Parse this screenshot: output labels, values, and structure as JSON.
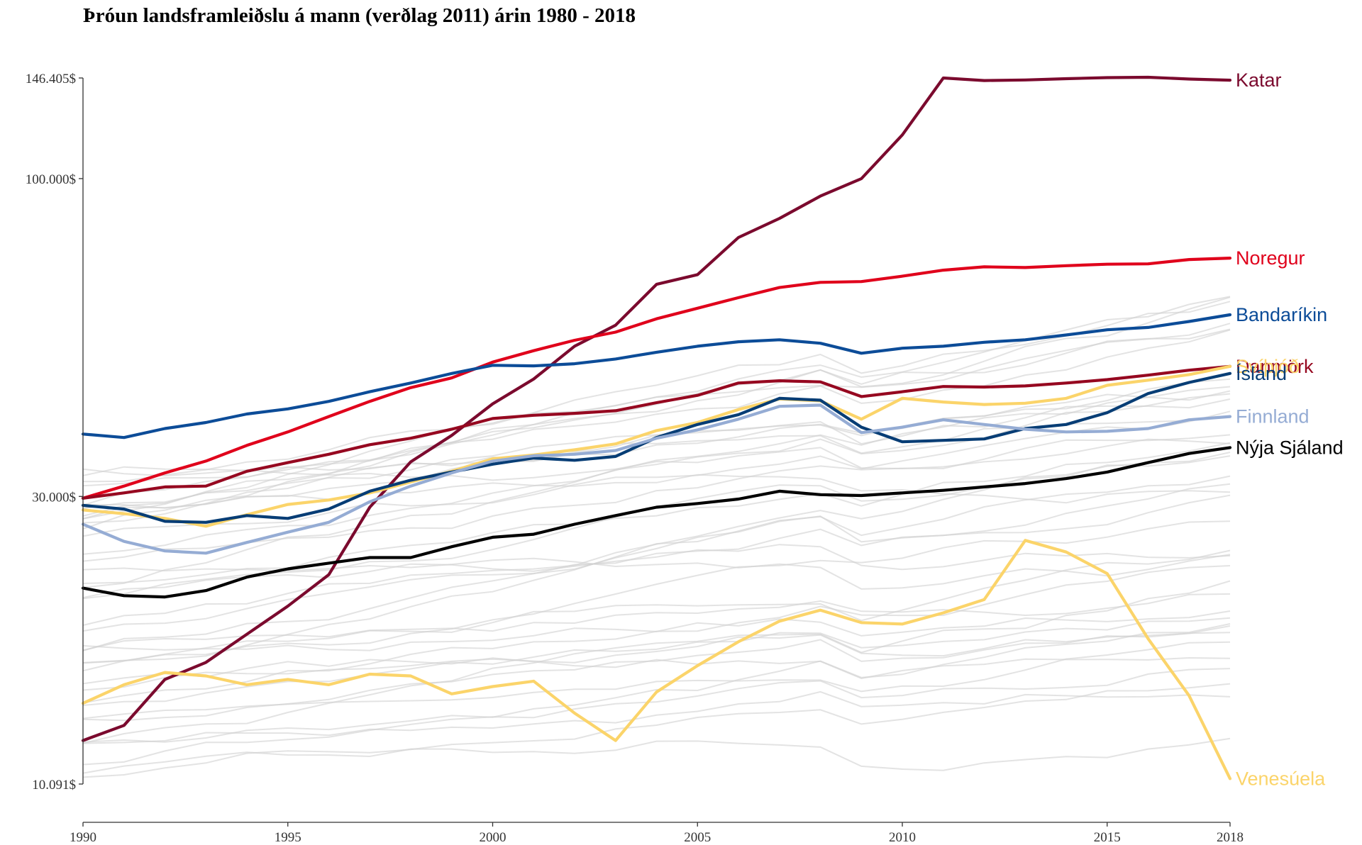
{
  "chart_data": {
    "type": "line",
    "title": "Þróun landsframleiðslu á mann (verðlag 2011) árin 1980 - 2018",
    "xlabel": "",
    "ylabel": "",
    "y_scale": "log",
    "ylim": [
      10091,
      146405
    ],
    "xlim": [
      1990,
      2018
    ],
    "y_ticks": [
      {
        "value": 10091,
        "label": "10.091$"
      },
      {
        "value": 30000,
        "label": "30.000$"
      },
      {
        "value": 100000,
        "label": "100.000$"
      },
      {
        "value": 146405,
        "label": "146.405$"
      }
    ],
    "x_ticks": [
      {
        "value": 1990,
        "label": "1990"
      },
      {
        "value": 1995,
        "label": "1995"
      },
      {
        "value": 2000,
        "label": "2000"
      },
      {
        "value": 2005,
        "label": "2005"
      },
      {
        "value": 2010,
        "label": "2010"
      },
      {
        "value": 2015,
        "label": "2015"
      },
      {
        "value": 2018,
        "label": "2018"
      }
    ],
    "grid": false,
    "legend": "direct labels at right end of lines",
    "x": [
      1990,
      1991,
      1992,
      1993,
      1994,
      1995,
      1996,
      1997,
      1998,
      1999,
      2000,
      2001,
      2002,
      2003,
      2004,
      2005,
      2006,
      2007,
      2008,
      2009,
      2010,
      2011,
      2012,
      2013,
      2014,
      2015,
      2016,
      2017,
      2018
    ],
    "series": [
      {
        "name": "Katar",
        "color": "#7b0a2e",
        "values": [
          11900,
          12600,
          15000,
          16000,
          17800,
          19800,
          22300,
          28800,
          34200,
          37800,
          42600,
          46800,
          53000,
          57400,
          67000,
          69500,
          80000,
          86000,
          93600,
          100000,
          118000,
          146405,
          145000,
          145300,
          146000,
          146600,
          146800,
          145800,
          145200
        ]
      },
      {
        "name": "Noregur",
        "color": "#e0001b",
        "values": [
          29800,
          31200,
          32800,
          34300,
          36400,
          38300,
          40600,
          43000,
          45300,
          47000,
          49900,
          52100,
          54200,
          55900,
          58800,
          61200,
          63700,
          66200,
          67500,
          67700,
          69100,
          70700,
          71600,
          71400,
          71900,
          72300,
          72400,
          73600,
          74000
        ]
      },
      {
        "name": "Bandaríkin",
        "color": "#0c4c98",
        "values": [
          38000,
          37500,
          38800,
          39700,
          41000,
          41800,
          43000,
          44600,
          46100,
          47800,
          49300,
          49200,
          49600,
          50500,
          51800,
          53000,
          53900,
          54300,
          53600,
          51600,
          52600,
          53000,
          53800,
          54300,
          55300,
          56400,
          56900,
          58200,
          59700
        ]
      },
      {
        "name": "Danmörk",
        "color": "#960820",
        "values": [
          29800,
          30400,
          31100,
          31200,
          33000,
          34100,
          35200,
          36500,
          37400,
          38700,
          40300,
          40800,
          41100,
          41500,
          42800,
          44000,
          46100,
          46500,
          46300,
          43800,
          44600,
          45500,
          45400,
          45600,
          46100,
          46700,
          47500,
          48400,
          49100
        ]
      },
      {
        "name": "Svíþjóð",
        "color": "#fbd46a",
        "values": [
          28500,
          28100,
          27600,
          26800,
          28000,
          29100,
          29600,
          30400,
          31700,
          33000,
          34600,
          35100,
          35800,
          36600,
          38500,
          39700,
          41700,
          43400,
          43100,
          40200,
          43500,
          42900,
          42500,
          42700,
          43500,
          45700,
          46600,
          47600,
          49100
        ]
      },
      {
        "name": "Ísland",
        "color": "#073d75",
        "values": [
          29000,
          28600,
          27300,
          27200,
          27900,
          27600,
          28600,
          30600,
          31900,
          32900,
          33900,
          34700,
          34400,
          34900,
          37500,
          39400,
          40900,
          43500,
          43200,
          39000,
          36900,
          37100,
          37300,
          38800,
          39400,
          41200,
          44300,
          46200,
          47800
        ]
      },
      {
        "name": "Finnland",
        "color": "#95acd4",
        "values": [
          27000,
          25300,
          24400,
          24200,
          25200,
          26200,
          27200,
          29400,
          31200,
          32800,
          34300,
          35000,
          35200,
          35700,
          37400,
          38600,
          40200,
          42200,
          42400,
          38200,
          39000,
          40100,
          39400,
          38700,
          38300,
          38400,
          38800,
          40100,
          40600
        ]
      },
      {
        "name": "Nýja Sjáland",
        "color": "#000000",
        "values": [
          21200,
          20600,
          20500,
          21000,
          22100,
          22800,
          23300,
          23800,
          23800,
          24800,
          25700,
          26000,
          27000,
          27900,
          28800,
          29200,
          29700,
          30600,
          30200,
          30100,
          30400,
          30700,
          31100,
          31500,
          32100,
          32900,
          34100,
          35300,
          36100
        ]
      },
      {
        "name": "Venesúela",
        "color": "#fbd46a",
        "values": [
          13700,
          14700,
          15400,
          15200,
          14700,
          15000,
          14700,
          15300,
          15200,
          14200,
          14600,
          14900,
          13200,
          11900,
          14300,
          15800,
          17300,
          18700,
          19500,
          18600,
          18500,
          19300,
          20300,
          25400,
          24300,
          22400,
          17500,
          14100,
          10300
        ]
      }
    ],
    "background_series_count": 40,
    "background_series_color": "#d0d0d0"
  }
}
